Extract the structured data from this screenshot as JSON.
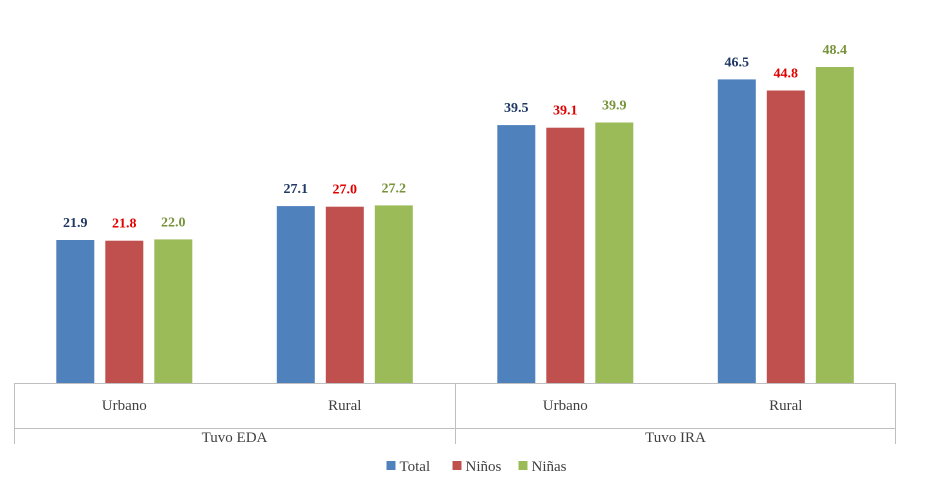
{
  "chart_data": {
    "type": "bar",
    "groups": [
      {
        "label": "Tuvo EDA",
        "categories": [
          "Urbano",
          "Rural"
        ]
      },
      {
        "label": "Tuvo IRA",
        "categories": [
          "Urbano",
          "Rural"
        ]
      }
    ],
    "categories": [
      "Urbano",
      "Rural",
      "Urbano",
      "Rural"
    ],
    "series": [
      {
        "name": "Total",
        "color": "#4f81bd",
        "label_color": "#1f3864",
        "values": [
          21.9,
          27.1,
          39.5,
          46.5
        ]
      },
      {
        "name": "Niños",
        "color": "#c0504d",
        "label_color": "#e00000",
        "values": [
          21.8,
          27.0,
          39.1,
          44.8
        ]
      },
      {
        "name": "Niñas",
        "color": "#9bbb59",
        "label_color": "#77933c",
        "values": [
          22.0,
          27.2,
          39.9,
          48.4
        ]
      }
    ],
    "ylim": [
      0,
      50
    ],
    "grid": false,
    "legend_position": "bottom",
    "title": "",
    "xlabel": "",
    "ylabel": ""
  }
}
